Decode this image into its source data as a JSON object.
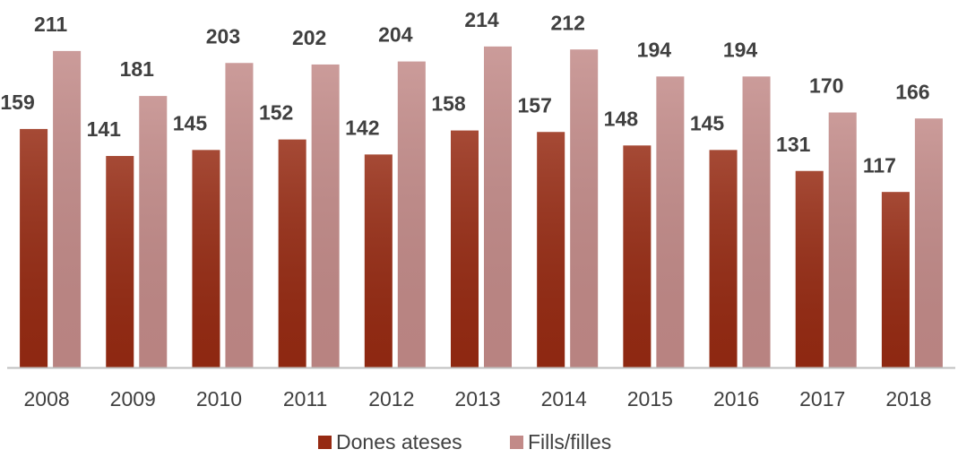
{
  "chart_data": {
    "type": "bar",
    "categories": [
      "2008",
      "2009",
      "2010",
      "2011",
      "2012",
      "2013",
      "2014",
      "2015",
      "2016",
      "2017",
      "2018"
    ],
    "series": [
      {
        "name": "Dones ateses",
        "color": "#962a12",
        "values": [
          159,
          141,
          145,
          152,
          142,
          158,
          157,
          148,
          145,
          131,
          117
        ]
      },
      {
        "name": "Fills/filles",
        "color": "#c28a88",
        "values": [
          211,
          181,
          203,
          202,
          204,
          214,
          212,
          194,
          194,
          170,
          166
        ]
      }
    ],
    "ylim": [
      0,
      245
    ],
    "legend": "bottom"
  }
}
